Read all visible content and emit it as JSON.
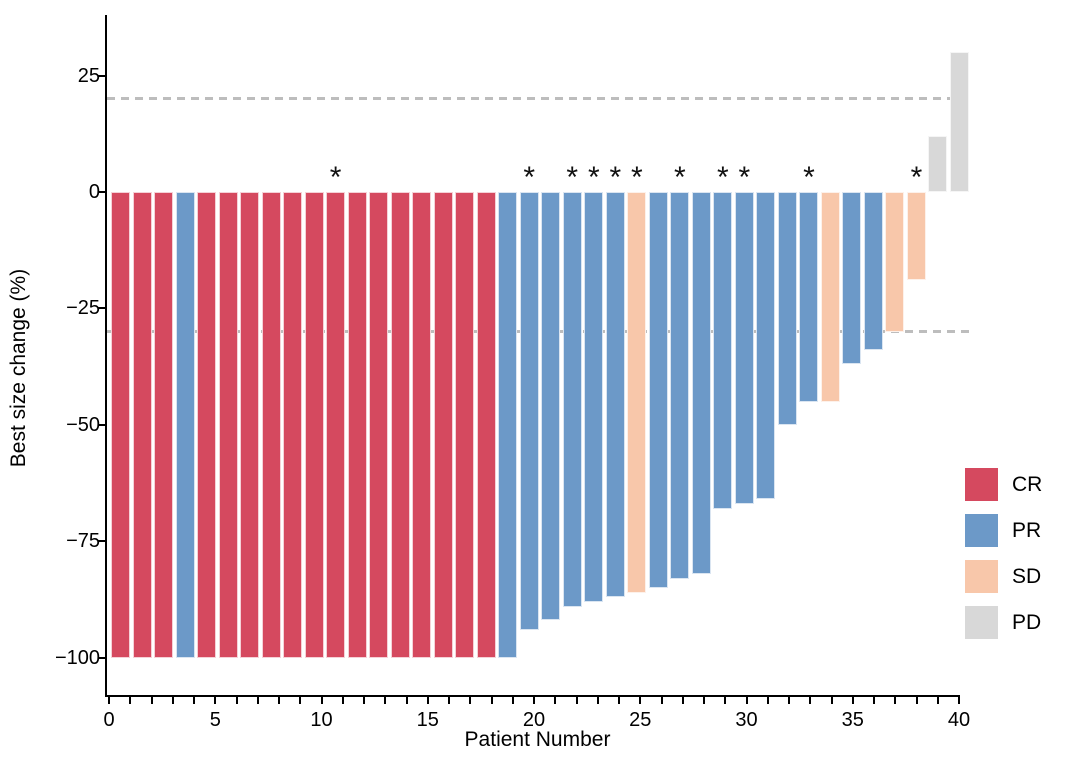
{
  "chart_data": {
    "type": "bar",
    "variant": "waterfall",
    "title": "",
    "xlabel": "Patient Number",
    "ylabel": "Best size change (%)",
    "xlim": [
      0,
      40.75
    ],
    "ylim": [
      -108,
      38
    ],
    "x_tick_values": [
      0,
      5,
      10,
      15,
      20,
      25,
      30,
      35,
      40
    ],
    "x_minor_tick_step": 1,
    "y_tick_values": [
      25,
      0,
      -25,
      -50,
      -75,
      -100
    ],
    "grid": false,
    "legend_position": "inside-right",
    "annotation_marker": "*",
    "reference_lines": [
      {
        "y": 20,
        "style": "dashed",
        "color": "#BDBDBD"
      },
      {
        "y": -30,
        "style": "dashed",
        "color": "#BDBDBD"
      }
    ],
    "legend": [
      {
        "label": "CR",
        "color": "#D5495F"
      },
      {
        "label": "PR",
        "color": "#6C99C8"
      },
      {
        "label": "SD",
        "color": "#F8C7AA"
      },
      {
        "label": "PD",
        "color": "#D8D8D8"
      }
    ],
    "series": [
      {
        "patient": 1,
        "value": -100,
        "response": "CR",
        "starred": false
      },
      {
        "patient": 2,
        "value": -100,
        "response": "CR",
        "starred": false
      },
      {
        "patient": 3,
        "value": -100,
        "response": "CR",
        "starred": false
      },
      {
        "patient": 4,
        "value": -100,
        "response": "PR",
        "starred": false
      },
      {
        "patient": 5,
        "value": -100,
        "response": "CR",
        "starred": false
      },
      {
        "patient": 6,
        "value": -100,
        "response": "CR",
        "starred": false
      },
      {
        "patient": 7,
        "value": -100,
        "response": "CR",
        "starred": false
      },
      {
        "patient": 8,
        "value": -100,
        "response": "CR",
        "starred": false
      },
      {
        "patient": 9,
        "value": -100,
        "response": "CR",
        "starred": false
      },
      {
        "patient": 10,
        "value": -100,
        "response": "CR",
        "starred": false
      },
      {
        "patient": 11,
        "value": -100,
        "response": "CR",
        "starred": true
      },
      {
        "patient": 12,
        "value": -100,
        "response": "CR",
        "starred": false
      },
      {
        "patient": 13,
        "value": -100,
        "response": "CR",
        "starred": false
      },
      {
        "patient": 14,
        "value": -100,
        "response": "CR",
        "starred": false
      },
      {
        "patient": 15,
        "value": -100,
        "response": "CR",
        "starred": false
      },
      {
        "patient": 16,
        "value": -100,
        "response": "CR",
        "starred": false
      },
      {
        "patient": 17,
        "value": -100,
        "response": "CR",
        "starred": false
      },
      {
        "patient": 18,
        "value": -100,
        "response": "CR",
        "starred": false
      },
      {
        "patient": 19,
        "value": -100,
        "response": "PR",
        "starred": false
      },
      {
        "patient": 20,
        "value": -94,
        "response": "PR",
        "starred": true
      },
      {
        "patient": 21,
        "value": -92,
        "response": "PR",
        "starred": false
      },
      {
        "patient": 22,
        "value": -89,
        "response": "PR",
        "starred": true
      },
      {
        "patient": 23,
        "value": -88,
        "response": "PR",
        "starred": true
      },
      {
        "patient": 24,
        "value": -87,
        "response": "PR",
        "starred": true
      },
      {
        "patient": 25,
        "value": -86,
        "response": "SD",
        "starred": true
      },
      {
        "patient": 26,
        "value": -85,
        "response": "PR",
        "starred": false
      },
      {
        "patient": 27,
        "value": -83,
        "response": "PR",
        "starred": true
      },
      {
        "patient": 28,
        "value": -82,
        "response": "PR",
        "starred": false
      },
      {
        "patient": 29,
        "value": -68,
        "response": "PR",
        "starred": true
      },
      {
        "patient": 30,
        "value": -67,
        "response": "PR",
        "starred": true
      },
      {
        "patient": 31,
        "value": -66,
        "response": "PR",
        "starred": false
      },
      {
        "patient": 32,
        "value": -50,
        "response": "PR",
        "starred": false
      },
      {
        "patient": 33,
        "value": -45,
        "response": "PR",
        "starred": true
      },
      {
        "patient": 34,
        "value": -45,
        "response": "SD",
        "starred": false
      },
      {
        "patient": 35,
        "value": -37,
        "response": "PR",
        "starred": false
      },
      {
        "patient": 36,
        "value": -34,
        "response": "PR",
        "starred": false
      },
      {
        "patient": 37,
        "value": -30,
        "response": "SD",
        "starred": false
      },
      {
        "patient": 38,
        "value": -19,
        "response": "SD",
        "starred": true
      },
      {
        "patient": 39,
        "value": 12,
        "response": "PD",
        "starred": false
      },
      {
        "patient": 40,
        "value": 30,
        "response": "PD",
        "starred": false
      }
    ]
  }
}
